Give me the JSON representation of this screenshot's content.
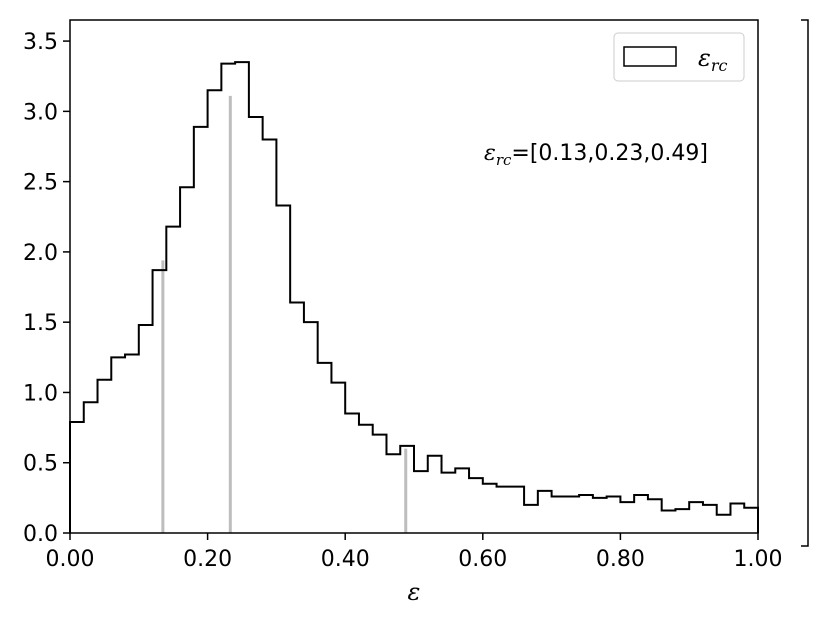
{
  "chart_data": {
    "type": "histogram",
    "xlabel": "ε",
    "ylabel": "",
    "xlim": [
      0.0,
      1.0
    ],
    "ylim": [
      0.0,
      3.65
    ],
    "xticks": [
      0.0,
      0.2,
      0.4,
      0.6,
      0.8,
      1.0
    ],
    "xtick_labels": [
      "0.00",
      "0.20",
      "0.40",
      "0.60",
      "0.80",
      "1.00"
    ],
    "yticks": [
      0.0,
      0.5,
      1.0,
      1.5,
      2.0,
      2.5,
      3.0,
      3.5
    ],
    "ytick_labels": [
      "0.0",
      "0.5",
      "1.0",
      "1.5",
      "2.0",
      "2.5",
      "3.0",
      "3.5"
    ],
    "legend": {
      "placement": "top-right",
      "label_base": "ε",
      "label_sub": "rc"
    },
    "annotation": {
      "sym": "ε",
      "sub": "rc",
      "text": "=[0.13,0.23,0.49]"
    },
    "bin_edges": [
      0.0,
      0.02,
      0.04,
      0.06,
      0.08,
      0.1,
      0.12,
      0.14,
      0.16,
      0.18,
      0.2,
      0.22,
      0.24,
      0.26,
      0.28,
      0.3,
      0.32,
      0.34,
      0.36,
      0.38,
      0.4,
      0.42,
      0.44,
      0.46,
      0.48,
      0.5,
      0.52,
      0.54,
      0.56,
      0.58,
      0.6,
      0.62,
      0.64,
      0.66,
      0.68,
      0.7,
      0.72,
      0.74,
      0.76,
      0.78,
      0.8,
      0.82,
      0.84,
      0.86,
      0.88,
      0.9,
      0.92,
      0.94,
      0.96,
      0.98,
      1.0
    ],
    "values": [
      0.79,
      0.93,
      1.09,
      1.25,
      1.27,
      1.48,
      1.87,
      2.18,
      2.46,
      2.89,
      3.15,
      3.34,
      3.35,
      2.96,
      2.8,
      2.33,
      1.64,
      1.5,
      1.21,
      1.07,
      0.85,
      0.77,
      0.7,
      0.56,
      0.62,
      0.44,
      0.55,
      0.43,
      0.46,
      0.39,
      0.35,
      0.33,
      0.33,
      0.2,
      0.3,
      0.26,
      0.26,
      0.27,
      0.25,
      0.26,
      0.22,
      0.27,
      0.24,
      0.16,
      0.17,
      0.22,
      0.2,
      0.13,
      0.21,
      0.18
    ],
    "markers": [
      {
        "x": 0.135,
        "y": 1.94
      },
      {
        "x": 0.233,
        "y": 3.11
      },
      {
        "x": 0.488,
        "y": 0.6
      }
    ],
    "colors": {
      "histogram": "#000000",
      "markers": "#bdbdbd"
    }
  }
}
